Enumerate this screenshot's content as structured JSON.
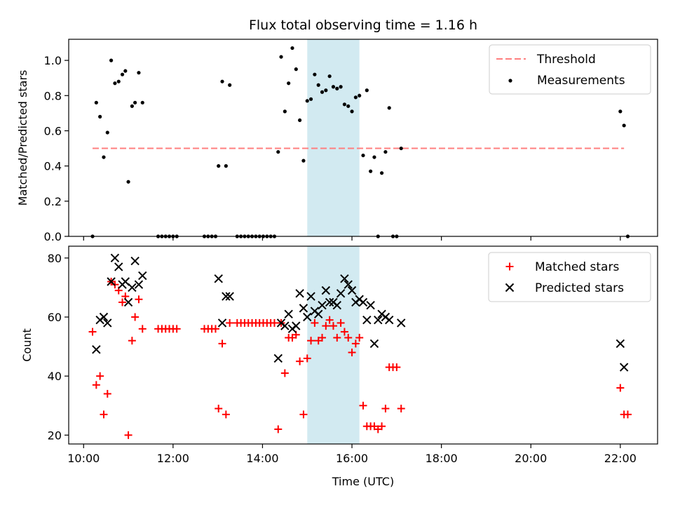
{
  "figure": {
    "title": "Flux total observing time = 1.16 h"
  },
  "colors": {
    "threshold": "#ff7f7f",
    "measurements": "#000000",
    "matched": "#ff0000",
    "predicted": "#000000",
    "highlight": "#add8e6"
  },
  "chart_data": [
    {
      "type": "scatter",
      "ylabel": "Matched/Predicted stars",
      "xlim": [
        "09:40",
        "22:50"
      ],
      "ylim": [
        0,
        1.12
      ],
      "yticks": [
        "0.0",
        "0.2",
        "0.4",
        "0.6",
        "0.8",
        "1.0"
      ],
      "ytick_values": [
        0,
        0.2,
        0.4,
        0.6,
        0.8,
        1.0
      ],
      "highlight": {
        "x_start": "15:00",
        "x_end": "16:10"
      },
      "grid": false,
      "legend_position": "top-right",
      "threshold": {
        "name": "Threshold",
        "y": 0.5,
        "x_start": "10:12",
        "x_end": "22:05"
      },
      "series": [
        {
          "name": "Measurements",
          "points": [
            [
              "10:12",
              0
            ],
            [
              "10:17",
              0.76
            ],
            [
              "10:22",
              0.68
            ],
            [
              "10:27",
              0.45
            ],
            [
              "10:32",
              0.59
            ],
            [
              "10:37",
              1.0
            ],
            [
              "10:42",
              0.87
            ],
            [
              "10:47",
              0.88
            ],
            [
              "10:52",
              0.92
            ],
            [
              "10:56",
              0.94
            ],
            [
              "11:00",
              0.31
            ],
            [
              "11:05",
              0.74
            ],
            [
              "11:09",
              0.76
            ],
            [
              "11:14",
              0.93
            ],
            [
              "11:19",
              0.76
            ],
            [
              "11:40",
              0
            ],
            [
              "11:45",
              0
            ],
            [
              "11:50",
              0
            ],
            [
              "11:55",
              0
            ],
            [
              "12:00",
              0
            ],
            [
              "12:05",
              0
            ],
            [
              "12:42",
              0
            ],
            [
              "12:47",
              0
            ],
            [
              "12:52",
              0
            ],
            [
              "12:57",
              0
            ],
            [
              "13:01",
              0.4
            ],
            [
              "13:06",
              0.88
            ],
            [
              "13:11",
              0.4
            ],
            [
              "13:16",
              0.86
            ],
            [
              "13:26",
              0
            ],
            [
              "13:31",
              0
            ],
            [
              "13:36",
              0
            ],
            [
              "13:41",
              0
            ],
            [
              "13:46",
              0
            ],
            [
              "13:51",
              0
            ],
            [
              "13:56",
              0
            ],
            [
              "14:01",
              0
            ],
            [
              "14:06",
              0
            ],
            [
              "14:11",
              0
            ],
            [
              "14:16",
              0
            ],
            [
              "14:21",
              0.48
            ],
            [
              "14:25",
              1.02
            ],
            [
              "14:30",
              0.71
            ],
            [
              "14:35",
              0.87
            ],
            [
              "14:40",
              1.07
            ],
            [
              "14:45",
              0.95
            ],
            [
              "14:50",
              0.66
            ],
            [
              "14:55",
              0.43
            ],
            [
              "15:00",
              0.77
            ],
            [
              "15:05",
              0.78
            ],
            [
              "15:10",
              0.92
            ],
            [
              "15:15",
              0.86
            ],
            [
              "15:20",
              0.82
            ],
            [
              "15:25",
              0.83
            ],
            [
              "15:30",
              0.91
            ],
            [
              "15:35",
              0.85
            ],
            [
              "15:40",
              0.84
            ],
            [
              "15:45",
              0.85
            ],
            [
              "15:50",
              0.75
            ],
            [
              "15:55",
              0.74
            ],
            [
              "16:00",
              0.71
            ],
            [
              "16:05",
              0.79
            ],
            [
              "16:10",
              0.8
            ],
            [
              "16:15",
              0.46
            ],
            [
              "16:20",
              0.83
            ],
            [
              "16:25",
              0.37
            ],
            [
              "16:30",
              0.45
            ],
            [
              "16:35",
              0
            ],
            [
              "16:40",
              0.36
            ],
            [
              "16:45",
              0.48
            ],
            [
              "16:50",
              0.73
            ],
            [
              "16:55",
              0
            ],
            [
              "17:00",
              0
            ],
            [
              "17:06",
              0.5
            ],
            [
              "22:00",
              0.71
            ],
            [
              "22:05",
              0.63
            ],
            [
              "22:10",
              0
            ]
          ]
        }
      ]
    },
    {
      "type": "scatter",
      "xlabel": "Time (UTC)",
      "ylabel": "Count",
      "xlim": [
        "09:40",
        "22:50"
      ],
      "ylim": [
        17,
        84
      ],
      "xticks": [
        "10:00",
        "12:00",
        "14:00",
        "16:00",
        "18:00",
        "20:00",
        "22:00"
      ],
      "yticks": [
        "20",
        "40",
        "60",
        "80"
      ],
      "ytick_values": [
        20,
        40,
        60,
        80
      ],
      "highlight": {
        "x_start": "15:00",
        "x_end": "16:10"
      },
      "grid": false,
      "legend_position": "top-right",
      "series": [
        {
          "name": "Matched stars",
          "points": [
            [
              "10:12",
              55
            ],
            [
              "10:17",
              37
            ],
            [
              "10:22",
              40
            ],
            [
              "10:27",
              27
            ],
            [
              "10:32",
              34
            ],
            [
              "10:37",
              72
            ],
            [
              "10:42",
              71
            ],
            [
              "10:47",
              69
            ],
            [
              "10:52",
              65
            ],
            [
              "10:56",
              67
            ],
            [
              "11:00",
              20
            ],
            [
              "11:05",
              52
            ],
            [
              "11:09",
              60
            ],
            [
              "11:14",
              66
            ],
            [
              "11:19",
              56
            ],
            [
              "11:40",
              56
            ],
            [
              "11:45",
              56
            ],
            [
              "11:50",
              56
            ],
            [
              "11:55",
              56
            ],
            [
              "12:00",
              56
            ],
            [
              "12:05",
              56
            ],
            [
              "12:42",
              56
            ],
            [
              "12:47",
              56
            ],
            [
              "12:52",
              56
            ],
            [
              "12:57",
              56
            ],
            [
              "13:01",
              29
            ],
            [
              "13:06",
              51
            ],
            [
              "13:11",
              27
            ],
            [
              "13:16",
              58
            ],
            [
              "13:26",
              58
            ],
            [
              "13:31",
              58
            ],
            [
              "13:36",
              58
            ],
            [
              "13:41",
              58
            ],
            [
              "13:46",
              58
            ],
            [
              "13:51",
              58
            ],
            [
              "13:56",
              58
            ],
            [
              "14:01",
              58
            ],
            [
              "14:06",
              58
            ],
            [
              "14:11",
              58
            ],
            [
              "14:16",
              58
            ],
            [
              "14:21",
              22
            ],
            [
              "14:25",
              58
            ],
            [
              "14:30",
              41
            ],
            [
              "14:35",
              53
            ],
            [
              "14:40",
              53
            ],
            [
              "14:45",
              54
            ],
            [
              "14:50",
              45
            ],
            [
              "14:55",
              27
            ],
            [
              "15:00",
              46
            ],
            [
              "15:05",
              52
            ],
            [
              "15:10",
              58
            ],
            [
              "15:15",
              52
            ],
            [
              "15:20",
              53
            ],
            [
              "15:25",
              57
            ],
            [
              "15:30",
              59
            ],
            [
              "15:35",
              57
            ],
            [
              "15:40",
              53
            ],
            [
              "15:45",
              58
            ],
            [
              "15:50",
              55
            ],
            [
              "15:55",
              53
            ],
            [
              "16:00",
              48
            ],
            [
              "16:05",
              51
            ],
            [
              "16:10",
              53
            ],
            [
              "16:15",
              30
            ],
            [
              "16:20",
              23
            ],
            [
              "16:25",
              23
            ],
            [
              "16:30",
              23
            ],
            [
              "16:35",
              22
            ],
            [
              "16:40",
              23
            ],
            [
              "16:45",
              29
            ],
            [
              "16:50",
              43
            ],
            [
              "16:55",
              43
            ],
            [
              "17:00",
              43
            ],
            [
              "17:06",
              29
            ],
            [
              "22:00",
              36
            ],
            [
              "22:05",
              27
            ],
            [
              "22:10",
              27
            ]
          ]
        },
        {
          "name": "Predicted stars",
          "points": [
            [
              "10:17",
              49
            ],
            [
              "10:22",
              59
            ],
            [
              "10:27",
              60
            ],
            [
              "10:32",
              58
            ],
            [
              "10:37",
              72
            ],
            [
              "10:42",
              80
            ],
            [
              "10:47",
              77
            ],
            [
              "10:52",
              71
            ],
            [
              "10:56",
              72
            ],
            [
              "11:00",
              65
            ],
            [
              "11:05",
              70
            ],
            [
              "11:09",
              79
            ],
            [
              "11:14",
              71
            ],
            [
              "11:19",
              74
            ],
            [
              "13:01",
              73
            ],
            [
              "13:06",
              58
            ],
            [
              "13:11",
              67
            ],
            [
              "13:16",
              67
            ],
            [
              "14:21",
              46
            ],
            [
              "14:25",
              58
            ],
            [
              "14:30",
              57
            ],
            [
              "14:35",
              61
            ],
            [
              "14:40",
              56
            ],
            [
              "14:45",
              57
            ],
            [
              "14:50",
              68
            ],
            [
              "14:55",
              63
            ],
            [
              "15:00",
              60
            ],
            [
              "15:05",
              67
            ],
            [
              "15:10",
              62
            ],
            [
              "15:15",
              61
            ],
            [
              "15:20",
              64
            ],
            [
              "15:25",
              69
            ],
            [
              "15:30",
              65
            ],
            [
              "15:35",
              65
            ],
            [
              "15:40",
              64
            ],
            [
              "15:45",
              68
            ],
            [
              "15:50",
              73
            ],
            [
              "15:55",
              71
            ],
            [
              "16:00",
              69
            ],
            [
              "16:05",
              65
            ],
            [
              "16:10",
              66
            ],
            [
              "16:15",
              65
            ],
            [
              "16:20",
              59
            ],
            [
              "16:25",
              64
            ],
            [
              "16:30",
              51
            ],
            [
              "16:35",
              59
            ],
            [
              "16:40",
              61
            ],
            [
              "16:45",
              60
            ],
            [
              "16:50",
              59
            ],
            [
              "17:06",
              58
            ],
            [
              "22:00",
              51
            ],
            [
              "22:05",
              43
            ]
          ]
        }
      ]
    }
  ]
}
